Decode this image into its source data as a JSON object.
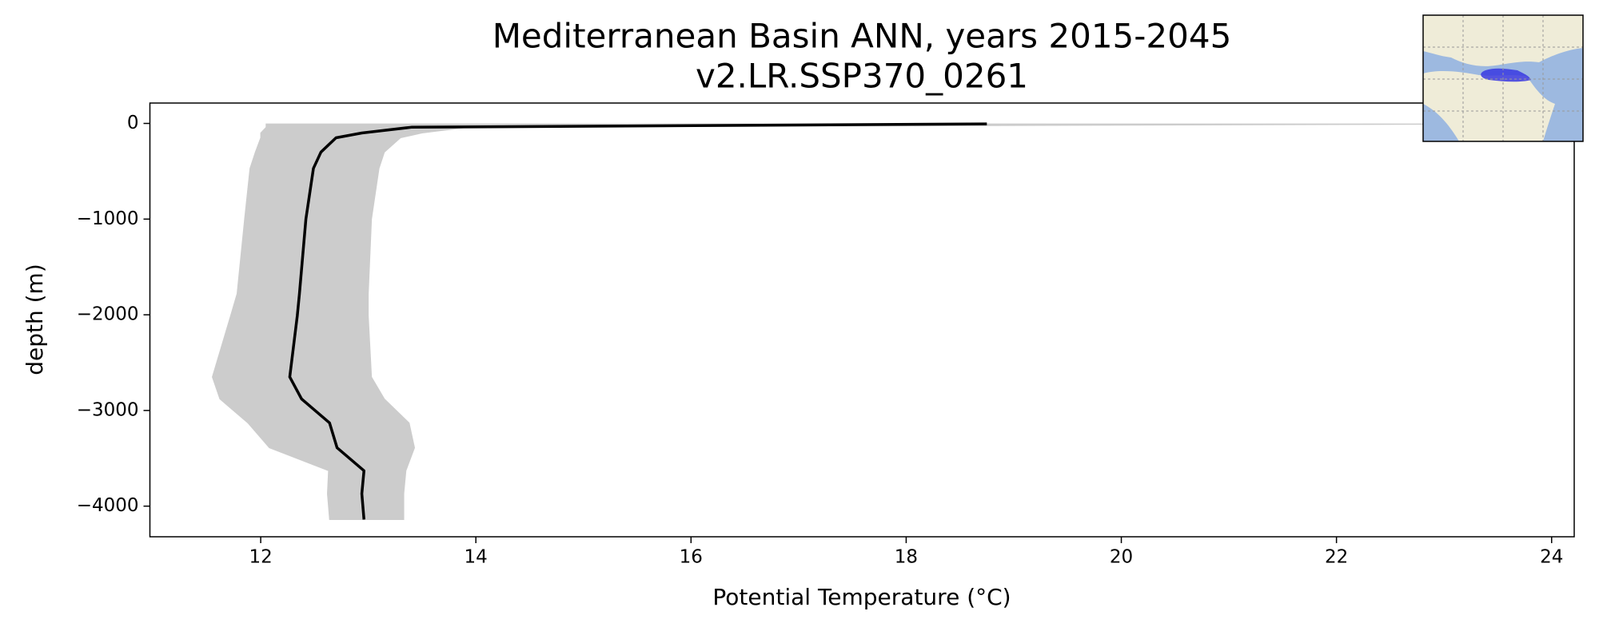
{
  "chart_data": {
    "type": "line",
    "title": "Mediterranean Basin ANN, years 2015-2045",
    "subtitle": "v2.LR.SSP370_0261",
    "x_label": "Potential Temperature (°C)",
    "y_label": "depth (m)",
    "xlim": [
      10.97,
      24.21
    ],
    "ylim": [
      -4320,
      213
    ],
    "xticks": [
      12,
      14,
      16,
      18,
      20,
      22,
      24
    ],
    "yticks": [
      0,
      {
        "value": -1000,
        "label": "−1000"
      },
      {
        "value": -2000,
        "label": "−2000"
      },
      {
        "value": -3000,
        "label": "−3000"
      },
      {
        "value": -4000,
        "label": "−4000"
      }
    ],
    "grid": false,
    "depth": [
      -5,
      -40,
      -100,
      -150,
      -300,
      -470,
      -1000,
      -1780,
      -2010,
      -2650,
      -2880,
      -3130,
      -3390,
      -3630,
      -3870,
      -4140
    ],
    "line": {
      "color": "#000000",
      "values": [
        18.75,
        13.4,
        12.94,
        12.7,
        12.56,
        12.49,
        12.42,
        12.36,
        12.34,
        12.27,
        12.38,
        12.64,
        12.71,
        12.96,
        12.94,
        12.96
      ]
    },
    "band": {
      "color": "#cccccc",
      "low": [
        12.05,
        12.05,
        12.0,
        12.0,
        11.95,
        11.9,
        11.85,
        11.78,
        11.72,
        11.55,
        11.62,
        11.88,
        12.08,
        12.63,
        12.62,
        12.64
      ],
      "high": [
        23.9,
        13.93,
        13.5,
        13.3,
        13.15,
        13.1,
        13.03,
        13.0,
        13.0,
        13.03,
        13.15,
        13.38,
        13.43,
        13.35,
        13.33,
        13.33
      ]
    }
  }
}
